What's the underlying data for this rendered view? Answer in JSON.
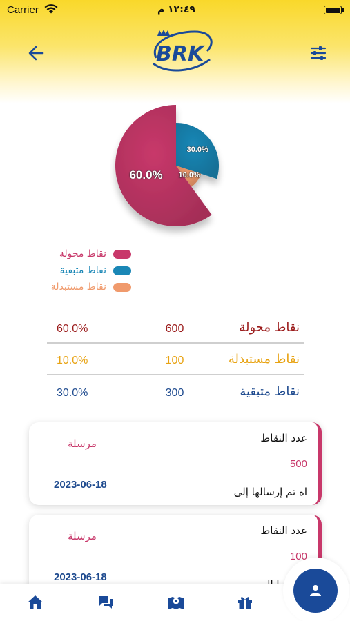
{
  "status_bar": {
    "carrier": "Carrier",
    "time": "١٢:٤٩ م"
  },
  "header": {
    "logo_text": "BRK",
    "back_icon": "arrow-left-icon",
    "filter_icon": "sliders-icon"
  },
  "chart_data": {
    "type": "pie",
    "slices": [
      {
        "label": "نقاط محولة",
        "value": 60.0,
        "display": "60.0%",
        "color": "#c8386a"
      },
      {
        "label": "نقاط متبقية",
        "value": 30.0,
        "display": "30.0%",
        "color": "#1a87b6"
      },
      {
        "label": "نقاط مستبدلة",
        "value": 10.0,
        "display": "10.0%",
        "color": "#f09a6c"
      }
    ],
    "legend_position": "bottom-left"
  },
  "legend": [
    {
      "label": "نقاط محولة",
      "color": "#c8386a"
    },
    {
      "label": "نقاط متبقية",
      "color": "#1a87b6"
    },
    {
      "label": "نقاط مستبدلة",
      "color": "#f09a6c"
    }
  ],
  "summary": [
    {
      "label": "نقاط محولة",
      "count": "600",
      "percent": "60.0%",
      "color": "#9b1b1b"
    },
    {
      "label": "نقاط مستبدلة",
      "count": "100",
      "percent": "10.0%",
      "color": "#e8a313"
    },
    {
      "label": "نقاط متبقية",
      "count": "300",
      "percent": "30.0%",
      "color": "#1f4b8f"
    }
  ],
  "cards": [
    {
      "title": "عدد النقاط",
      "points": "500",
      "note": "اه تم إرسالها إلى",
      "status": "مرسلة",
      "date": "2023-06-18"
    },
    {
      "title": "عدد النقاط",
      "points": "100",
      "note": "ارسالها الى",
      "status": "مرسلة",
      "date": "2023-06-18"
    }
  ],
  "bottom_nav": {
    "items": [
      "home-icon",
      "chat-icon",
      "map-icon",
      "gift-icon"
    ],
    "fab_icon": "user-icon",
    "accent": "#1a4a99"
  }
}
